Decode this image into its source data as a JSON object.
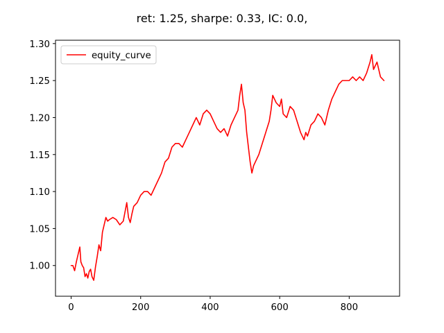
{
  "chart_data": {
    "type": "line",
    "title": "ret: 1.25, sharpe: 0.33, IC: 0.0,",
    "xlabel": "",
    "ylabel": "",
    "xlim": [
      -45,
      945
    ],
    "ylim": [
      0.9585,
      1.3045
    ],
    "xticks": [
      0,
      200,
      400,
      600,
      800
    ],
    "xtick_labels": [
      "0",
      "200",
      "400",
      "600",
      "800"
    ],
    "yticks": [
      1.0,
      1.05,
      1.1,
      1.15,
      1.2,
      1.25,
      1.3
    ],
    "ytick_labels": [
      "1.00",
      "1.05",
      "1.10",
      "1.15",
      "1.20",
      "1.25",
      "1.30"
    ],
    "grid": false,
    "legend": {
      "position": "upper-left"
    },
    "series": [
      {
        "name": "equity_curve",
        "color": "#ff0000",
        "x": [
          0,
          5,
          10,
          15,
          20,
          25,
          28,
          32,
          36,
          40,
          44,
          48,
          52,
          56,
          60,
          65,
          70,
          75,
          80,
          85,
          90,
          95,
          100,
          105,
          110,
          120,
          130,
          140,
          150,
          160,
          165,
          170,
          175,
          180,
          190,
          200,
          210,
          220,
          230,
          240,
          250,
          260,
          270,
          280,
          290,
          300,
          310,
          320,
          330,
          340,
          350,
          360,
          370,
          380,
          390,
          400,
          410,
          420,
          430,
          440,
          450,
          460,
          470,
          480,
          485,
          490,
          495,
          500,
          505,
          510,
          515,
          520,
          525,
          530,
          540,
          550,
          560,
          570,
          575,
          580,
          590,
          600,
          605,
          610,
          620,
          630,
          640,
          650,
          660,
          670,
          675,
          680,
          690,
          700,
          710,
          720,
          730,
          740,
          750,
          760,
          770,
          780,
          790,
          800,
          810,
          820,
          830,
          840,
          850,
          860,
          865,
          870,
          880,
          890,
          900
        ],
        "y": [
          1.0,
          1.0,
          0.993,
          1.005,
          1.015,
          1.025,
          1.005,
          1.0,
          0.997,
          0.985,
          0.989,
          0.983,
          0.992,
          0.995,
          0.985,
          0.98,
          0.998,
          1.012,
          1.028,
          1.02,
          1.045,
          1.055,
          1.065,
          1.06,
          1.062,
          1.065,
          1.062,
          1.055,
          1.06,
          1.085,
          1.065,
          1.058,
          1.07,
          1.08,
          1.085,
          1.095,
          1.1,
          1.1,
          1.095,
          1.105,
          1.115,
          1.125,
          1.14,
          1.145,
          1.16,
          1.165,
          1.165,
          1.16,
          1.17,
          1.18,
          1.19,
          1.2,
          1.19,
          1.205,
          1.21,
          1.205,
          1.195,
          1.185,
          1.18,
          1.185,
          1.175,
          1.19,
          1.2,
          1.21,
          1.23,
          1.245,
          1.22,
          1.21,
          1.18,
          1.16,
          1.14,
          1.125,
          1.135,
          1.14,
          1.15,
          1.165,
          1.18,
          1.195,
          1.21,
          1.23,
          1.22,
          1.215,
          1.225,
          1.205,
          1.2,
          1.215,
          1.21,
          1.195,
          1.18,
          1.17,
          1.18,
          1.175,
          1.19,
          1.195,
          1.205,
          1.2,
          1.19,
          1.21,
          1.225,
          1.235,
          1.245,
          1.25,
          1.25,
          1.25,
          1.255,
          1.25,
          1.255,
          1.25,
          1.26,
          1.275,
          1.285,
          1.265,
          1.275,
          1.255,
          1.25
        ]
      }
    ]
  }
}
